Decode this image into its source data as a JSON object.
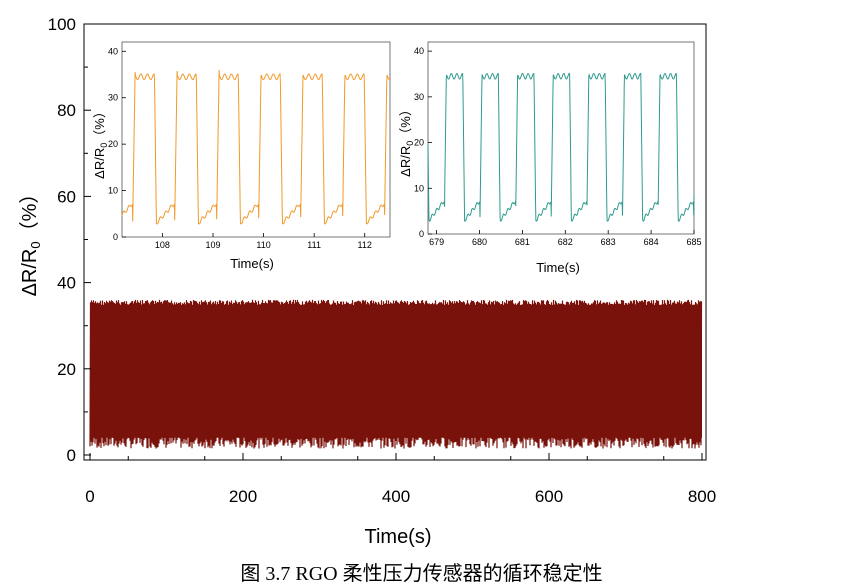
{
  "caption": "图 3.7    RGO 柔性压力传感器的循环稳定性",
  "chart_data": [
    {
      "type": "line",
      "role": "main",
      "xlabel": "Time(s)",
      "ylabel": "ΔR/R",
      "ylabel_sub": "0",
      "ylabel_unit": "（%）",
      "xlim": [
        0,
        800
      ],
      "ylim": [
        0,
        100
      ],
      "xticks": [
        0,
        200,
        400,
        600,
        800
      ],
      "yticks": [
        0,
        20,
        40,
        60,
        80,
        100
      ],
      "series": [
        {
          "color": "#7a120c",
          "x_range": [
            0,
            800
          ],
          "cycle_min": 2,
          "cycle_max": 36
        }
      ]
    },
    {
      "type": "line",
      "role": "inset-left",
      "xlabel": "Time(s)",
      "ylabel": "ΔR/R",
      "ylabel_sub": "0",
      "ylabel_unit": "（%）",
      "xlim": [
        107.2,
        112.5
      ],
      "ylim": [
        0,
        42
      ],
      "xticks": [
        108,
        109,
        110,
        111,
        112
      ],
      "yticks": [
        0,
        10,
        20,
        30,
        40
      ],
      "series": [
        {
          "color": "#f2992b",
          "period": 0.83,
          "min": 2,
          "max": 36
        }
      ]
    },
    {
      "type": "line",
      "role": "inset-right",
      "xlabel": "Time(s)",
      "ylabel": "ΔR/R",
      "ylabel_sub": "0",
      "ylabel_unit": "（%）",
      "xlim": [
        678.8,
        685
      ],
      "ylim": [
        0,
        42
      ],
      "xticks": [
        679,
        680,
        681,
        682,
        683,
        684,
        685
      ],
      "yticks": [
        0,
        10,
        20,
        30,
        40
      ],
      "series": [
        {
          "color": "#2e9a8e",
          "period": 0.83,
          "min": 2,
          "max": 36
        }
      ]
    }
  ]
}
